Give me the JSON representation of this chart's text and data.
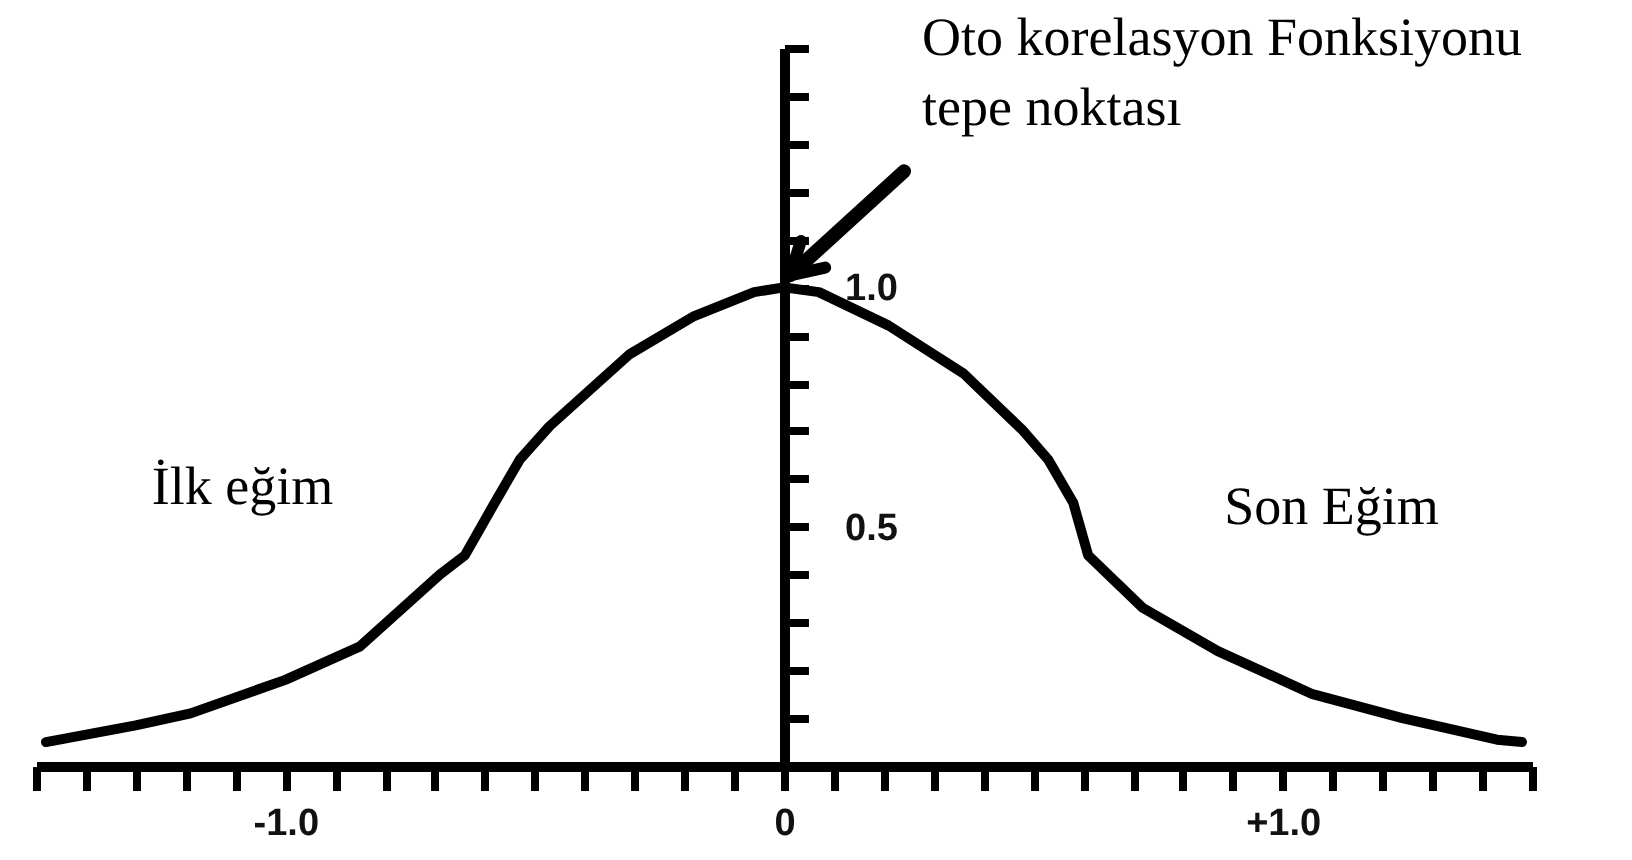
{
  "chart_data": {
    "type": "line",
    "x": [
      -1.48,
      -1.3,
      -1.19,
      -1.0,
      -0.85,
      -0.69,
      -0.64,
      -0.58,
      -0.53,
      -0.47,
      -0.31,
      -0.18,
      -0.06,
      0,
      0.07,
      0.21,
      0.36,
      0.48,
      0.53,
      0.58,
      0.61,
      0.72,
      0.87,
      1.06,
      1.24,
      1.43,
      1.48
    ],
    "series": [
      {
        "color": "#000000",
        "values": [
          0.05,
          0.085,
          0.11,
          0.18,
          0.25,
          0.4,
          0.44,
          0.55,
          0.64,
          0.71,
          0.86,
          0.94,
          0.99,
          1.0,
          0.99,
          0.92,
          0.82,
          0.7,
          0.64,
          0.55,
          0.44,
          0.33,
          0.24,
          0.15,
          0.1,
          0.055,
          0.05
        ]
      }
    ],
    "xlim": [
      -1.5,
      1.5
    ],
    "ylim": [
      0,
      1.5
    ],
    "xticks": [
      {
        "value": -1.5,
        "label": null
      },
      {
        "value": -1.4,
        "label": null
      },
      {
        "value": -1.3,
        "label": null
      },
      {
        "value": -1.2,
        "label": null
      },
      {
        "value": -1.1,
        "label": null
      },
      {
        "value": -1.0,
        "label": "-1.0"
      },
      {
        "value": -0.9,
        "label": null
      },
      {
        "value": -0.8,
        "label": null
      },
      {
        "value": -0.7,
        "label": null
      },
      {
        "value": -0.6,
        "label": null
      },
      {
        "value": -0.5,
        "label": null
      },
      {
        "value": -0.4,
        "label": null
      },
      {
        "value": -0.3,
        "label": null
      },
      {
        "value": -0.2,
        "label": null
      },
      {
        "value": -0.1,
        "label": null
      },
      0,
      {
        "value": 0.1,
        "label": null
      },
      {
        "value": 0.2,
        "label": null
      },
      {
        "value": 0.3,
        "label": null
      },
      {
        "value": 0.4,
        "label": null
      },
      {
        "value": 0.5,
        "label": null
      },
      {
        "value": 0.6,
        "label": null
      },
      {
        "value": 0.7,
        "label": null
      },
      {
        "value": 0.8,
        "label": null
      },
      {
        "value": 0.9,
        "label": null
      },
      {
        "value": 1.0,
        "label": "+1.0"
      },
      {
        "value": 1.1,
        "label": null
      },
      {
        "value": 1.2,
        "label": null
      },
      {
        "value": 1.3,
        "label": null
      },
      {
        "value": 1.4,
        "label": null
      },
      {
        "value": 1.5,
        "label": null
      }
    ],
    "yticks": [
      {
        "value": 0.1,
        "label": null
      },
      {
        "value": 0.2,
        "label": null
      },
      {
        "value": 0.3,
        "label": null
      },
      {
        "value": 0.4,
        "label": null
      },
      0.5,
      {
        "value": 0.6,
        "label": null
      },
      {
        "value": 0.7,
        "label": null
      },
      {
        "value": 0.8,
        "label": null
      },
      {
        "value": 0.9,
        "label": null
      },
      {
        "value": 1.0,
        "label": "1.0"
      },
      {
        "value": 1.1,
        "label": null
      },
      {
        "value": 1.2,
        "label": null
      },
      {
        "value": 1.3,
        "label": null
      },
      {
        "value": 1.4,
        "label": null
      },
      {
        "value": 1.5,
        "label": null
      }
    ],
    "annotations": [
      {
        "text": "Oto korelasyon Fonksiyonu tepe noktası",
        "x": 0,
        "y": 1.0
      },
      "İlk eğim",
      "Son Eğim"
    ],
    "marker": "none",
    "line_style": "solid"
  }
}
